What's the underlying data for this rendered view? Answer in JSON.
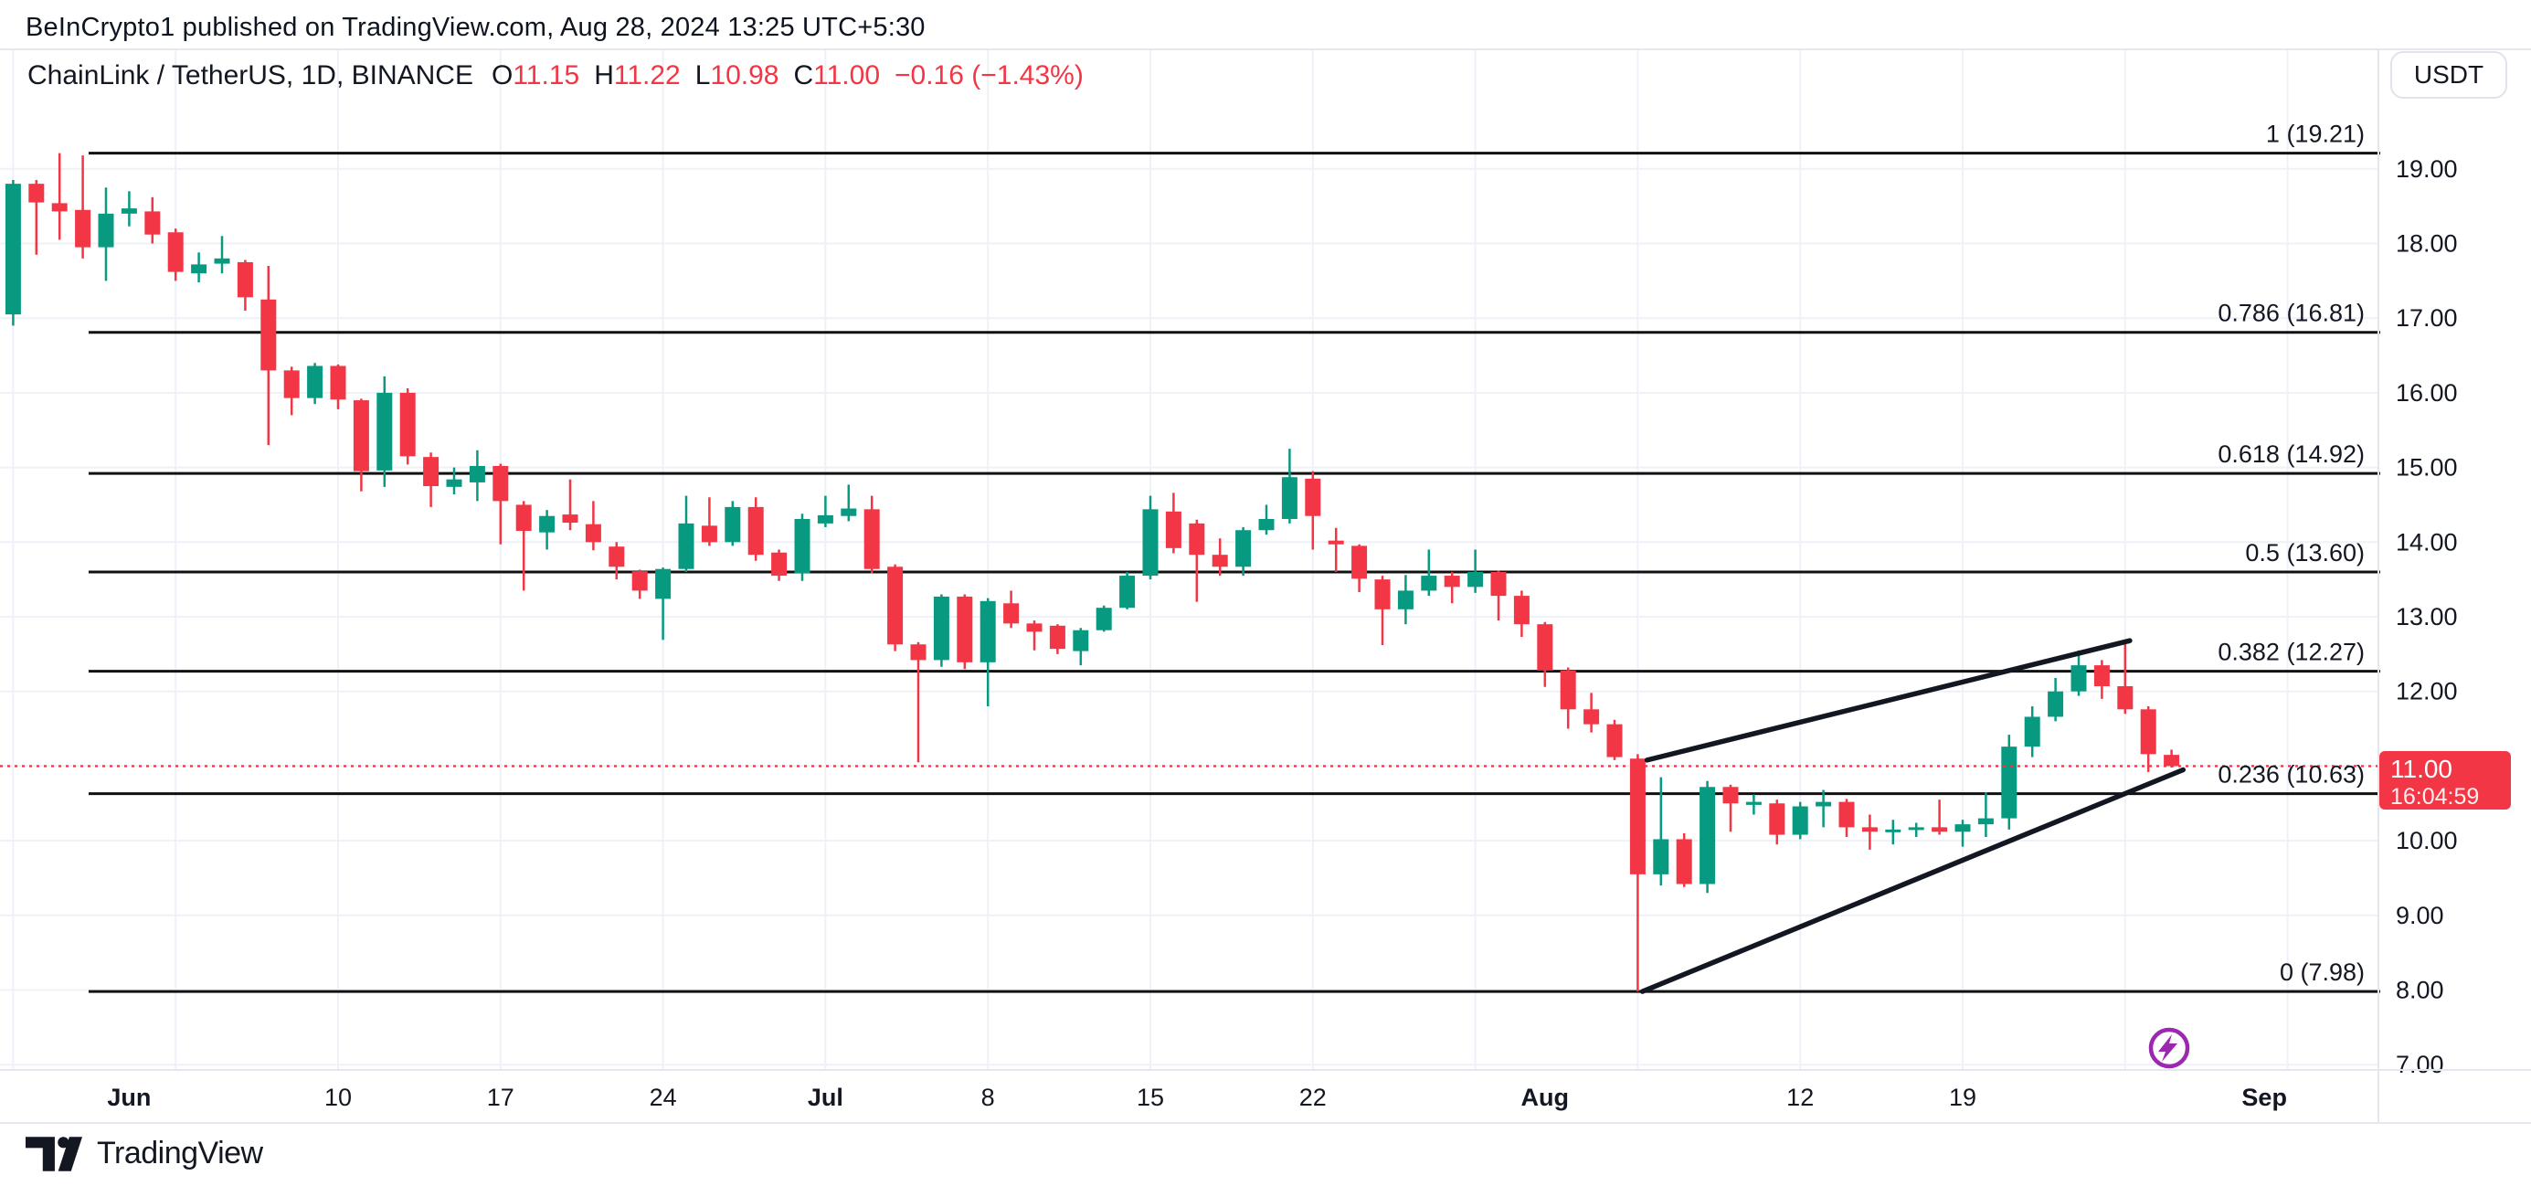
{
  "header": {
    "text": "BeInCrypto1 published on TradingView.com, Aug 28, 2024 13:25 UTC+5:30"
  },
  "legend": {
    "symbol": "ChainLink / TetherUS, 1D, BINANCE",
    "o_label": "O",
    "o": "11.15",
    "h_label": "H",
    "h": "11.22",
    "l_label": "L",
    "l": "10.98",
    "c_label": "C",
    "c": "11.00",
    "change": "−0.16 (−1.43%)"
  },
  "toolbar": {
    "currency_button": "USDT"
  },
  "price_badge": {
    "price": "11.00",
    "countdown": "16:04:59"
  },
  "logo": {
    "text": "TradingView"
  },
  "icons": {
    "lightning_color": "#9c27b0"
  },
  "chart_data": {
    "type": "candlestick",
    "title": "ChainLink / TetherUS, 1D, BINANCE",
    "exchange": "BINANCE",
    "interval": "1D",
    "quote_currency": "USDT",
    "grid": true,
    "ylim": [
      6.95,
      19.6
    ],
    "colors": {
      "up": "#089981",
      "down": "#f23645",
      "fib_line": "#111111",
      "trend_line": "#131722",
      "current_price": "#f23645",
      "grid": "#eef1f7",
      "axis_text": "#131722",
      "fib_text": "#131722"
    },
    "current_price": {
      "value": 11.0,
      "countdown": "16:04:59",
      "direction": "down"
    },
    "y_axis": {
      "ticks": [
        19,
        18,
        17,
        16,
        15,
        14,
        13,
        12,
        11,
        10,
        9,
        8,
        7
      ]
    },
    "x_axis": {
      "labels": [
        {
          "text": "Jun",
          "index": 5,
          "bold": true
        },
        {
          "text": "10",
          "index": 14,
          "bold": false
        },
        {
          "text": "17",
          "index": 21,
          "bold": false
        },
        {
          "text": "24",
          "index": 28,
          "bold": false
        },
        {
          "text": "Jul",
          "index": 35,
          "bold": true
        },
        {
          "text": "8",
          "index": 42,
          "bold": false
        },
        {
          "text": "15",
          "index": 49,
          "bold": false
        },
        {
          "text": "22",
          "index": 56,
          "bold": false
        },
        {
          "text": "Aug",
          "index": 66,
          "bold": true
        },
        {
          "text": "12",
          "index": 77,
          "bold": false
        },
        {
          "text": "19",
          "index": 84,
          "bold": false
        },
        {
          "text": "Sep",
          "index": 97,
          "bold": true
        }
      ],
      "gridline_indices": [
        0,
        7,
        14,
        21,
        28,
        35,
        42,
        49,
        56,
        63,
        70,
        77,
        84,
        91,
        98
      ]
    },
    "fib_levels": [
      {
        "level": "1",
        "price": 19.21
      },
      {
        "level": "0.786",
        "price": 16.81
      },
      {
        "level": "0.618",
        "price": 14.92
      },
      {
        "level": "0.5",
        "price": 13.6
      },
      {
        "level": "0.382",
        "price": 12.27
      },
      {
        "level": "0.236",
        "price": 10.63
      },
      {
        "level": "0",
        "price": 7.98
      }
    ],
    "trend_lines": [
      {
        "name": "wedge-lower",
        "from": [
          70.2,
          7.98
        ],
        "to": [
          93.5,
          10.95
        ]
      },
      {
        "name": "wedge-upper",
        "from": [
          70.4,
          11.08
        ],
        "to": [
          91.2,
          12.68
        ]
      }
    ],
    "candles": {
      "columns": [
        "date",
        "open",
        "high",
        "low",
        "close"
      ],
      "rows": [
        [
          "May 27",
          17.05,
          18.85,
          16.9,
          18.8
        ],
        [
          "May 28",
          18.8,
          18.85,
          17.85,
          18.55
        ],
        [
          "May 29",
          18.54,
          19.21,
          18.05,
          18.43
        ],
        [
          "May 30",
          18.45,
          19.18,
          17.8,
          17.95
        ],
        [
          "May 31",
          17.95,
          18.75,
          17.5,
          18.4
        ],
        [
          "Jun 1",
          18.4,
          18.7,
          18.23,
          18.47
        ],
        [
          "Jun 2",
          18.43,
          18.62,
          18.0,
          18.12
        ],
        [
          "Jun 3",
          18.15,
          18.2,
          17.5,
          17.62
        ],
        [
          "Jun 4",
          17.6,
          17.88,
          17.48,
          17.72
        ],
        [
          "Jun 5",
          17.73,
          18.1,
          17.6,
          17.8
        ],
        [
          "Jun 6",
          17.75,
          17.78,
          17.1,
          17.28
        ],
        [
          "Jun 7",
          17.25,
          17.7,
          15.3,
          16.3
        ],
        [
          "Jun 8",
          16.3,
          16.35,
          15.7,
          15.93
        ],
        [
          "Jun 9",
          15.93,
          16.4,
          15.85,
          16.36
        ],
        [
          "Jun 10",
          16.36,
          16.38,
          15.78,
          15.91
        ],
        [
          "Jun 11",
          15.9,
          15.92,
          14.68,
          14.95
        ],
        [
          "Jun 12",
          14.96,
          16.22,
          14.74,
          16.0
        ],
        [
          "Jun 13",
          16.0,
          16.06,
          15.04,
          15.15
        ],
        [
          "Jun 14",
          15.14,
          15.2,
          14.47,
          14.75
        ],
        [
          "Jun 15",
          14.74,
          15.0,
          14.64,
          14.84
        ],
        [
          "Jun 16",
          14.8,
          15.23,
          14.55,
          15.02
        ],
        [
          "Jun 17",
          15.02,
          15.05,
          13.97,
          14.55
        ],
        [
          "Jun 18",
          14.5,
          14.55,
          13.35,
          14.15
        ],
        [
          "Jun 19",
          14.13,
          14.43,
          13.9,
          14.35
        ],
        [
          "Jun 20",
          14.37,
          14.84,
          14.16,
          14.26
        ],
        [
          "Jun 21",
          14.24,
          14.55,
          13.89,
          14.0
        ],
        [
          "Jun 22",
          13.94,
          14.0,
          13.5,
          13.67
        ],
        [
          "Jun 23",
          13.61,
          13.63,
          13.24,
          13.35
        ],
        [
          "Jun 24",
          13.24,
          13.66,
          12.69,
          13.64
        ],
        [
          "Jun 25",
          13.64,
          14.62,
          13.6,
          14.25
        ],
        [
          "Jun 26",
          14.22,
          14.6,
          13.95,
          14.0
        ],
        [
          "Jun 27",
          14.0,
          14.55,
          13.95,
          14.47
        ],
        [
          "Jun 28",
          14.47,
          14.6,
          13.75,
          13.83
        ],
        [
          "Jun 29",
          13.86,
          13.9,
          13.48,
          13.55
        ],
        [
          "Jun 30",
          13.58,
          14.38,
          13.48,
          14.31
        ],
        [
          "Jul 1",
          14.25,
          14.62,
          14.2,
          14.36
        ],
        [
          "Jul 2",
          14.35,
          14.77,
          14.28,
          14.45
        ],
        [
          "Jul 3",
          14.44,
          14.62,
          13.58,
          13.64
        ],
        [
          "Jul 4",
          13.67,
          13.7,
          12.54,
          12.63
        ],
        [
          "Jul 5",
          12.63,
          12.66,
          11.05,
          12.42
        ],
        [
          "Jul 6",
          12.42,
          13.3,
          12.33,
          13.27
        ],
        [
          "Jul 7",
          13.27,
          13.3,
          12.3,
          12.39
        ],
        [
          "Jul 8",
          12.39,
          13.25,
          11.8,
          13.21
        ],
        [
          "Jul 9",
          13.18,
          13.35,
          12.85,
          12.91
        ],
        [
          "Jul 10",
          12.91,
          12.95,
          12.55,
          12.8
        ],
        [
          "Jul 11",
          12.88,
          12.9,
          12.5,
          12.57
        ],
        [
          "Jul 12",
          12.54,
          12.85,
          12.35,
          12.82
        ],
        [
          "Jul 13",
          12.82,
          13.15,
          12.8,
          13.12
        ],
        [
          "Jul 14",
          13.12,
          13.6,
          13.1,
          13.55
        ],
        [
          "Jul 15",
          13.55,
          14.62,
          13.5,
          14.44
        ],
        [
          "Jul 16",
          14.41,
          14.66,
          13.85,
          13.92
        ],
        [
          "Jul 17",
          14.25,
          14.3,
          13.2,
          13.83
        ],
        [
          "Jul 18",
          13.83,
          14.05,
          13.55,
          13.67
        ],
        [
          "Jul 19",
          13.67,
          14.2,
          13.55,
          14.16
        ],
        [
          "Jul 20",
          14.16,
          14.5,
          14.1,
          14.31
        ],
        [
          "Jul 21",
          14.31,
          15.25,
          14.25,
          14.87
        ],
        [
          "Jul 22",
          14.85,
          14.95,
          13.9,
          14.35
        ],
        [
          "Jul 23",
          14.02,
          14.19,
          13.6,
          13.97
        ],
        [
          "Jul 24",
          13.95,
          13.97,
          13.33,
          13.51
        ],
        [
          "Jul 25",
          13.5,
          13.55,
          12.62,
          13.1
        ],
        [
          "Jul 26",
          13.1,
          13.56,
          12.9,
          13.35
        ],
        [
          "Jul 27",
          13.35,
          13.9,
          13.28,
          13.55
        ],
        [
          "Jul 28",
          13.55,
          13.6,
          13.18,
          13.4
        ],
        [
          "Jul 29",
          13.4,
          13.9,
          13.32,
          13.6
        ],
        [
          "Jul 30",
          13.6,
          13.62,
          12.95,
          13.28
        ],
        [
          "Jul 31",
          13.28,
          13.35,
          12.73,
          12.9
        ],
        [
          "Aug 1",
          12.9,
          12.93,
          12.06,
          12.28
        ],
        [
          "Aug 2",
          12.28,
          12.32,
          11.5,
          11.76
        ],
        [
          "Aug 3",
          11.76,
          11.98,
          11.45,
          11.56
        ],
        [
          "Aug 4",
          11.56,
          11.62,
          11.08,
          11.12
        ],
        [
          "Aug 5",
          11.1,
          11.16,
          7.98,
          9.55
        ],
        [
          "Aug 6",
          9.55,
          10.85,
          9.4,
          10.02
        ],
        [
          "Aug 7",
          10.02,
          10.1,
          9.38,
          9.42
        ],
        [
          "Aug 8",
          9.42,
          10.8,
          9.3,
          10.72
        ],
        [
          "Aug 9",
          10.72,
          10.75,
          10.12,
          10.5
        ],
        [
          "Aug 10",
          10.48,
          10.62,
          10.35,
          10.52
        ],
        [
          "Aug 11",
          10.5,
          10.55,
          9.95,
          10.08
        ],
        [
          "Aug 12",
          10.08,
          10.52,
          10.02,
          10.46
        ],
        [
          "Aug 13",
          10.46,
          10.68,
          10.18,
          10.52
        ],
        [
          "Aug 14",
          10.52,
          10.56,
          10.05,
          10.18
        ],
        [
          "Aug 15",
          10.18,
          10.35,
          9.88,
          10.12
        ],
        [
          "Aug 16",
          10.12,
          10.28,
          9.95,
          10.15
        ],
        [
          "Aug 17",
          10.15,
          10.24,
          10.05,
          10.18
        ],
        [
          "Aug 18",
          10.18,
          10.55,
          10.08,
          10.12
        ],
        [
          "Aug 19",
          10.12,
          10.28,
          9.92,
          10.22
        ],
        [
          "Aug 20",
          10.22,
          10.65,
          10.05,
          10.3
        ],
        [
          "Aug 21",
          10.3,
          11.42,
          10.15,
          11.26
        ],
        [
          "Aug 22",
          11.26,
          11.8,
          11.12,
          11.66
        ],
        [
          "Aug 23",
          11.66,
          12.18,
          11.6,
          12.0
        ],
        [
          "Aug 24",
          12.0,
          12.55,
          11.94,
          12.35
        ],
        [
          "Aug 25",
          12.35,
          12.42,
          11.9,
          12.07
        ],
        [
          "Aug 26",
          12.07,
          12.68,
          11.7,
          11.76
        ],
        [
          "Aug 27",
          11.76,
          11.8,
          10.92,
          11.16
        ],
        [
          "Aug 28",
          11.15,
          11.22,
          10.98,
          11.0
        ]
      ]
    }
  }
}
